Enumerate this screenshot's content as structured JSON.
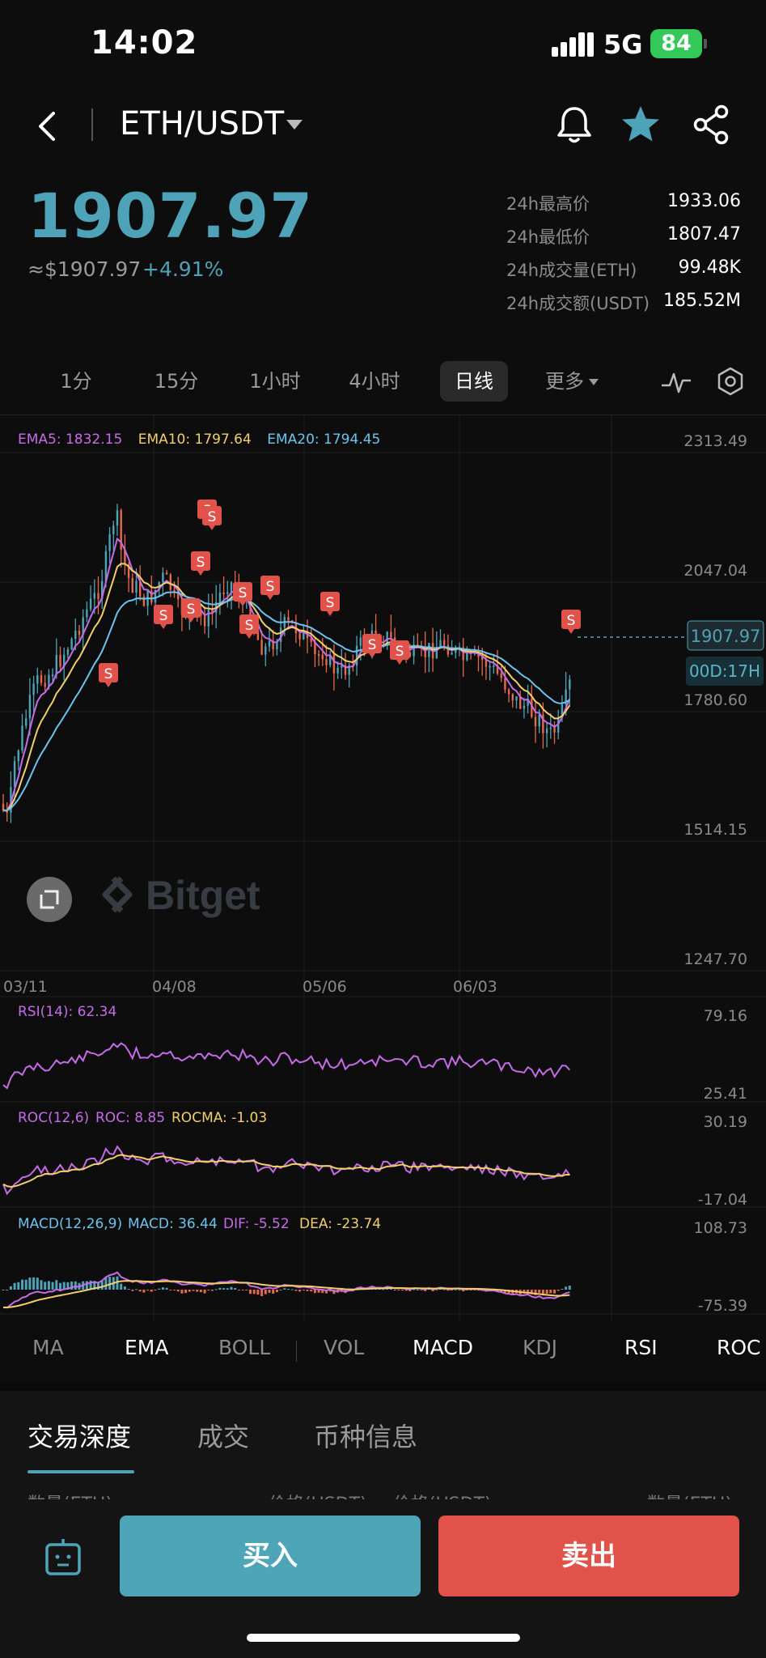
{
  "status": {
    "time": "14:02",
    "network": "5G",
    "battery": "84"
  },
  "header": {
    "pair": "ETH/USDT"
  },
  "price": {
    "last": "1907.97",
    "usd": "≈$1907.97",
    "change": "+4.91%"
  },
  "stats": [
    {
      "label": "24h最高价",
      "value": "1933.06"
    },
    {
      "label": "24h最低价",
      "value": "1807.47"
    },
    {
      "label": "24h成交量(ETH)",
      "value": "99.48K"
    },
    {
      "label": "24h成交额(USDT)",
      "value": "185.52M"
    }
  ],
  "timeframes": [
    "1分",
    "15分",
    "1小时",
    "4小时",
    "日线",
    "更多"
  ],
  "active_timeframe": "日线",
  "chart": {
    "ema5": "EMA5: 1832.15",
    "ema10": "EMA10: 1797.64",
    "ema20": "EMA20: 1794.45",
    "y_labels": [
      "2313.49",
      "2047.04",
      "1780.60",
      "1514.15",
      "1247.70"
    ],
    "x_labels": [
      "03/11",
      "04/08",
      "05/06",
      "06/03"
    ],
    "last_price_tag": "1907.97",
    "countdown_tag": "00D:17H",
    "watermark": "Bitget",
    "sell_marker": "S",
    "rsi_label": "RSI(14): 62.34",
    "rsi_hi": "79.16",
    "rsi_lo": "25.41",
    "roc_label": "ROC(12,6)",
    "roc_value": "ROC: 8.85",
    "rocma_value": "ROCMA: -1.03",
    "roc_hi": "30.19",
    "roc_lo": "-17.04",
    "macd_label": "MACD(12,26,9)",
    "macd_value": "MACD: 36.44",
    "dif_value": "DIF: -5.52",
    "dea_value": "DEA: -23.74",
    "macd_hi": "108.73",
    "macd_lo": "-75.39",
    "colors": {
      "up": "#4fa3b8",
      "down": "#e66a4a",
      "ema5": "#c76be8",
      "ema10": "#f2cf6a",
      "ema20": "#6cc4ee"
    }
  },
  "indicators": [
    "MA",
    "EMA",
    "BOLL",
    "VOL",
    "MACD",
    "KDJ",
    "RSI",
    "ROC"
  ],
  "indicators_on": [
    "EMA",
    "MACD",
    "RSI",
    "ROC"
  ],
  "bottom_tabs": [
    "交易深度",
    "成交",
    "币种信息"
  ],
  "depth_hints": [
    "数量(ETH)",
    "价格(USDT)",
    "价格(USDT)",
    "数量(ETH)"
  ],
  "actions": {
    "buy": "买入",
    "sell": "卖出"
  },
  "icons": [
    "back-icon",
    "bell-icon",
    "star-icon",
    "share-icon",
    "indicator-icon",
    "settings-icon",
    "fullscreen-icon",
    "bot-icon"
  ]
}
